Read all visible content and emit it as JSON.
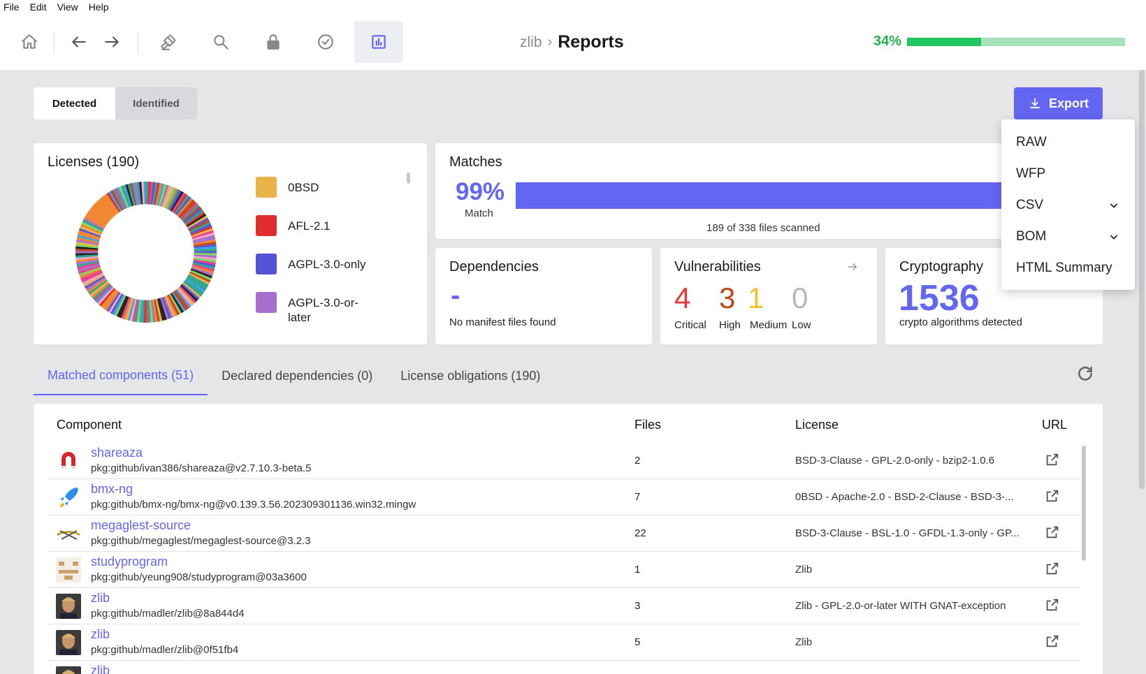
{
  "menubar": [
    "File",
    "Edit",
    "View",
    "Help"
  ],
  "breadcrumb": {
    "project": "zlib",
    "page": "Reports"
  },
  "progress": {
    "label": "34%",
    "value": 34
  },
  "toggle": {
    "detected": "Detected",
    "identified": "Identified"
  },
  "export": {
    "label": "Export",
    "menu": [
      {
        "label": "RAW",
        "submenu": false
      },
      {
        "label": "WFP",
        "submenu": false
      },
      {
        "label": "CSV",
        "submenu": true
      },
      {
        "label": "BOM",
        "submenu": true
      },
      {
        "label": "HTML Summary",
        "submenu": false
      }
    ]
  },
  "licenses": {
    "title": "Licenses (190)",
    "legend": [
      {
        "label": "0BSD",
        "color": "#e8b44a"
      },
      {
        "label": "AFL-2.1",
        "color": "#e02d2d"
      },
      {
        "label": "AGPL-3.0-only",
        "color": "#5553d6"
      },
      {
        "label": "AGPL-3.0-or-later",
        "color": "#a86ecb"
      }
    ]
  },
  "matches": {
    "title": "Matches",
    "percent": "99%",
    "percent_label": "Match",
    "scanned": "189 of 338 files scanned"
  },
  "dependencies": {
    "title": "Dependencies",
    "value": "-",
    "subtitle": "No manifest files found"
  },
  "vulnerabilities": {
    "title": "Vulnerabilities",
    "items": [
      {
        "count": "4",
        "label": "Critical",
        "color": "#e53935"
      },
      {
        "count": "3",
        "label": "High",
        "color": "#c0461a"
      },
      {
        "count": "1",
        "label": "Medium",
        "color": "#f2c12e"
      },
      {
        "count": "0",
        "label": "Low",
        "color": "#b7b7bd"
      }
    ]
  },
  "cryptography": {
    "title": "Cryptography",
    "value": "1536",
    "subtitle": "crypto algorithms detected"
  },
  "tabs": [
    {
      "label": "Matched components (51)",
      "active": true
    },
    {
      "label": "Declared dependencies (0)",
      "active": false
    },
    {
      "label": "License obligations (190)",
      "active": false
    }
  ],
  "table": {
    "headers": {
      "component": "Component",
      "files": "Files",
      "license": "License",
      "url": "URL"
    },
    "rows": [
      {
        "name": "shareaza",
        "purl": "pkg:github/ivan386/shareaza@v2.7.10.3-beta.5",
        "files": "2",
        "license": "BSD-3-Clause - GPL-2.0-only - bzip2-1.0.6",
        "icon": "magnet-icon"
      },
      {
        "name": "bmx-ng",
        "purl": "pkg:github/bmx-ng/bmx-ng@v0.139.3.56.202309301136.win32.mingw",
        "files": "7",
        "license": "0BSD - Apache-2.0 - BSD-2-Clause - BSD-3-...",
        "icon": "rocket-icon"
      },
      {
        "name": "megaglest-source",
        "purl": "pkg:github/megaglest/megaglest-source@3.2.3",
        "files": "22",
        "license": "BSD-3-Clause - BSL-1.0 - GFDL-1.3-only - GP...",
        "icon": "megaglest-logo-icon"
      },
      {
        "name": "studyprogram",
        "purl": "pkg:github/yeung908/studyprogram@03a3600",
        "files": "1",
        "license": "Zlib",
        "icon": "identicon-icon"
      },
      {
        "name": "zlib",
        "purl": "pkg:github/madler/zlib@8a844d4",
        "files": "3",
        "license": "Zlib - GPL-2.0-or-later WITH GNAT-exception",
        "icon": "user-photo-icon"
      },
      {
        "name": "zlib",
        "purl": "pkg:github/madler/zlib@0f51fb4",
        "files": "5",
        "license": "Zlib",
        "icon": "user-photo-icon"
      },
      {
        "name": "zlib",
        "purl": "",
        "files": "",
        "license": "",
        "icon": "user-photo-icon"
      }
    ]
  }
}
